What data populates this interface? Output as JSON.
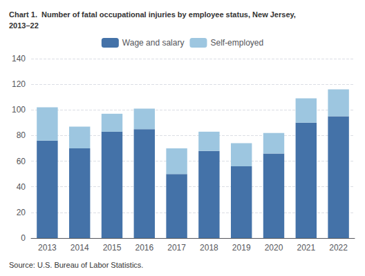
{
  "chart_data": {
    "type": "bar",
    "title": "Chart 1.  Number of fatal occupational injuries by employee status, New Jersey,\n2013–22",
    "annotations": [
      "Source: U.S. Bureau of Labor Statistics."
    ],
    "categories": [
      "2013",
      "2014",
      "2015",
      "2016",
      "2017",
      "2018",
      "2019",
      "2020",
      "2021",
      "2022"
    ],
    "series": [
      {
        "name": "Wage and salary",
        "color": "#4472a8",
        "values": [
          76,
          70,
          83,
          85,
          50,
          68,
          56,
          66,
          90,
          95
        ]
      },
      {
        "name": "Self-employed",
        "color": "#9dc6e0",
        "values": [
          26,
          17,
          14,
          16,
          20,
          15,
          18,
          16,
          19,
          21
        ]
      }
    ],
    "stacked": true,
    "ylim": [
      0,
      140
    ],
    "yticks": [
      0,
      20,
      40,
      60,
      80,
      100,
      120,
      140
    ],
    "grid": true,
    "legend": "top"
  }
}
